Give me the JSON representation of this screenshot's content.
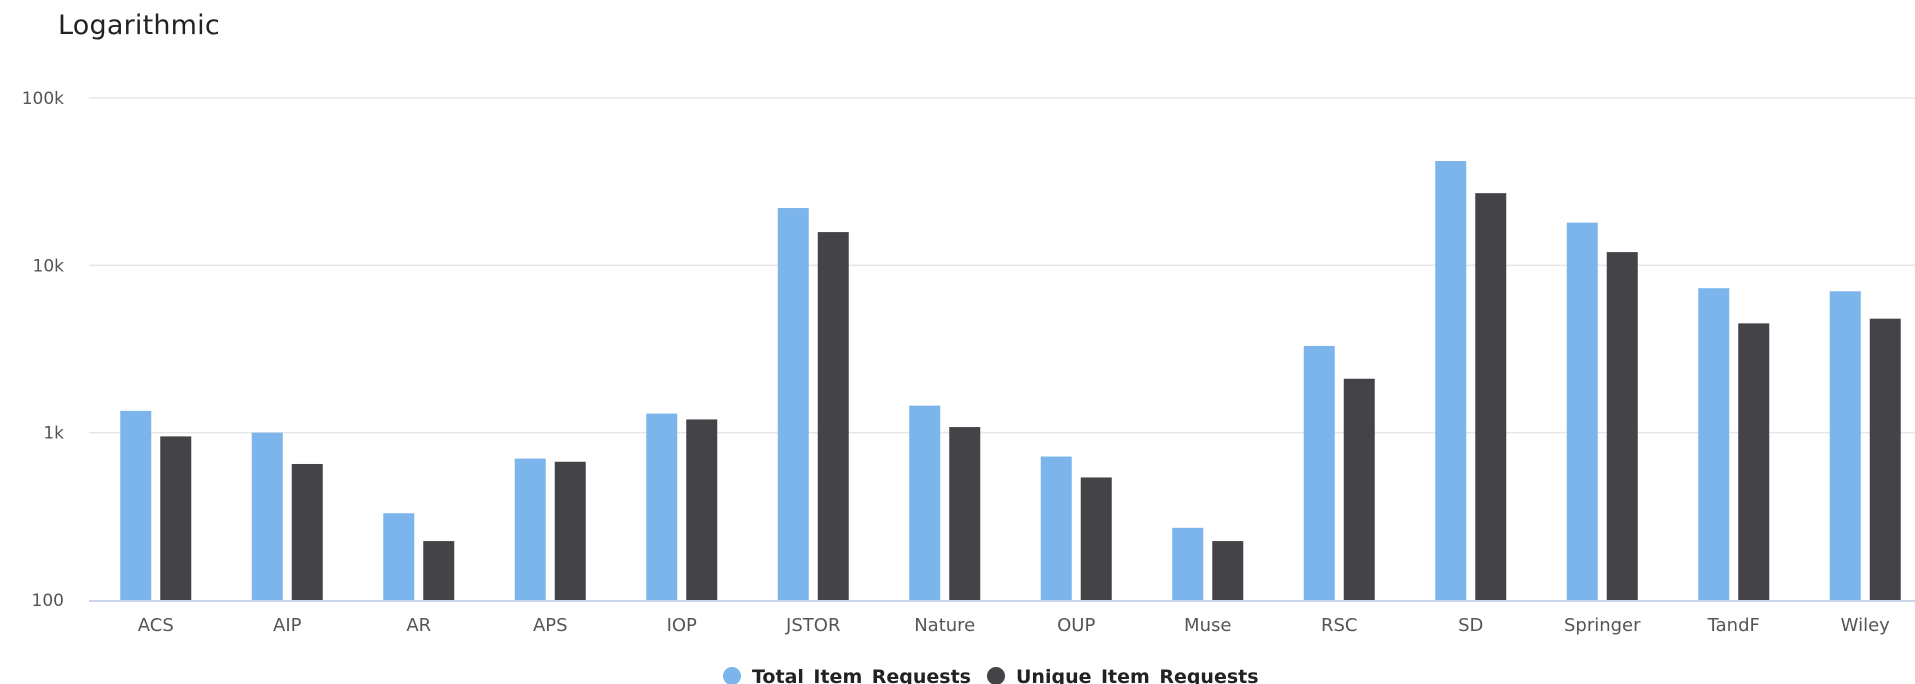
{
  "chart_data": {
    "type": "bar",
    "title": "Logarithmic",
    "yscale": "log",
    "ylim": [
      100,
      100000
    ],
    "grid": true,
    "legend": "bottom-center",
    "y_ticks": [
      {
        "value": 100,
        "label": "100"
      },
      {
        "value": 1000,
        "label": "1k"
      },
      {
        "value": 10000,
        "label": "10k"
      },
      {
        "value": 100000,
        "label": "100k"
      }
    ],
    "categories": [
      "ACS",
      "AIP",
      "AR",
      "APS",
      "IOP",
      "JSTOR",
      "Nature",
      "OUP",
      "Muse",
      "RSC",
      "SD",
      "Springer",
      "TandF",
      "Wiley"
    ],
    "series": [
      {
        "name": "Total_Item_Requests",
        "color": "#7cb5ec",
        "values": [
          1350,
          1000,
          330,
          700,
          1300,
          22000,
          1450,
          720,
          270,
          3300,
          42000,
          18000,
          7300,
          7000
        ]
      },
      {
        "name": "Unique_Item_Requests",
        "color": "#434348",
        "values": [
          950,
          650,
          225,
          670,
          1200,
          15800,
          1080,
          540,
          225,
          2100,
          27000,
          12000,
          4500,
          4800
        ]
      }
    ]
  }
}
